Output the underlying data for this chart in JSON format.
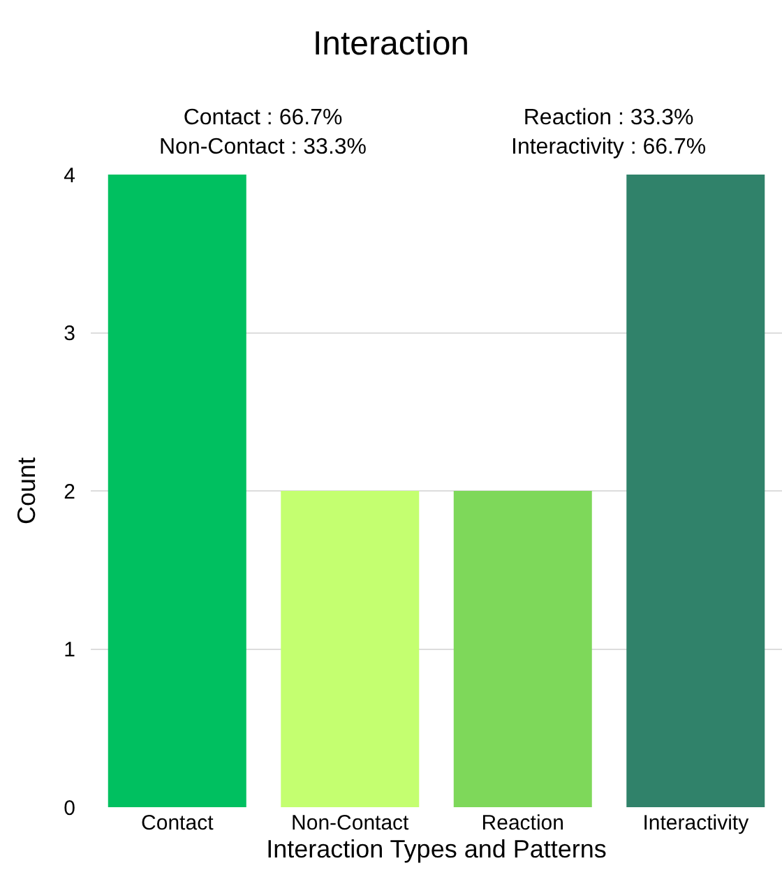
{
  "chart_data": {
    "type": "bar",
    "title": "Interaction",
    "xlabel": "Interaction Types and Patterns",
    "ylabel": "Count",
    "categories": [
      "Contact",
      "Non-Contact",
      "Reaction",
      "Interactivity"
    ],
    "values": [
      4,
      2,
      2,
      4
    ],
    "colors": [
      "#00c060",
      "#c4ff70",
      "#7ed85a",
      "#30826a"
    ],
    "ylim": [
      0,
      4
    ],
    "yticks": [
      0,
      1,
      2,
      3,
      4
    ],
    "grid": "y",
    "annotations": [
      "Contact : 66.7%\nNon-Contact : 33.3%",
      "Reaction : 33.3%\nInteractivity : 66.7%"
    ]
  }
}
